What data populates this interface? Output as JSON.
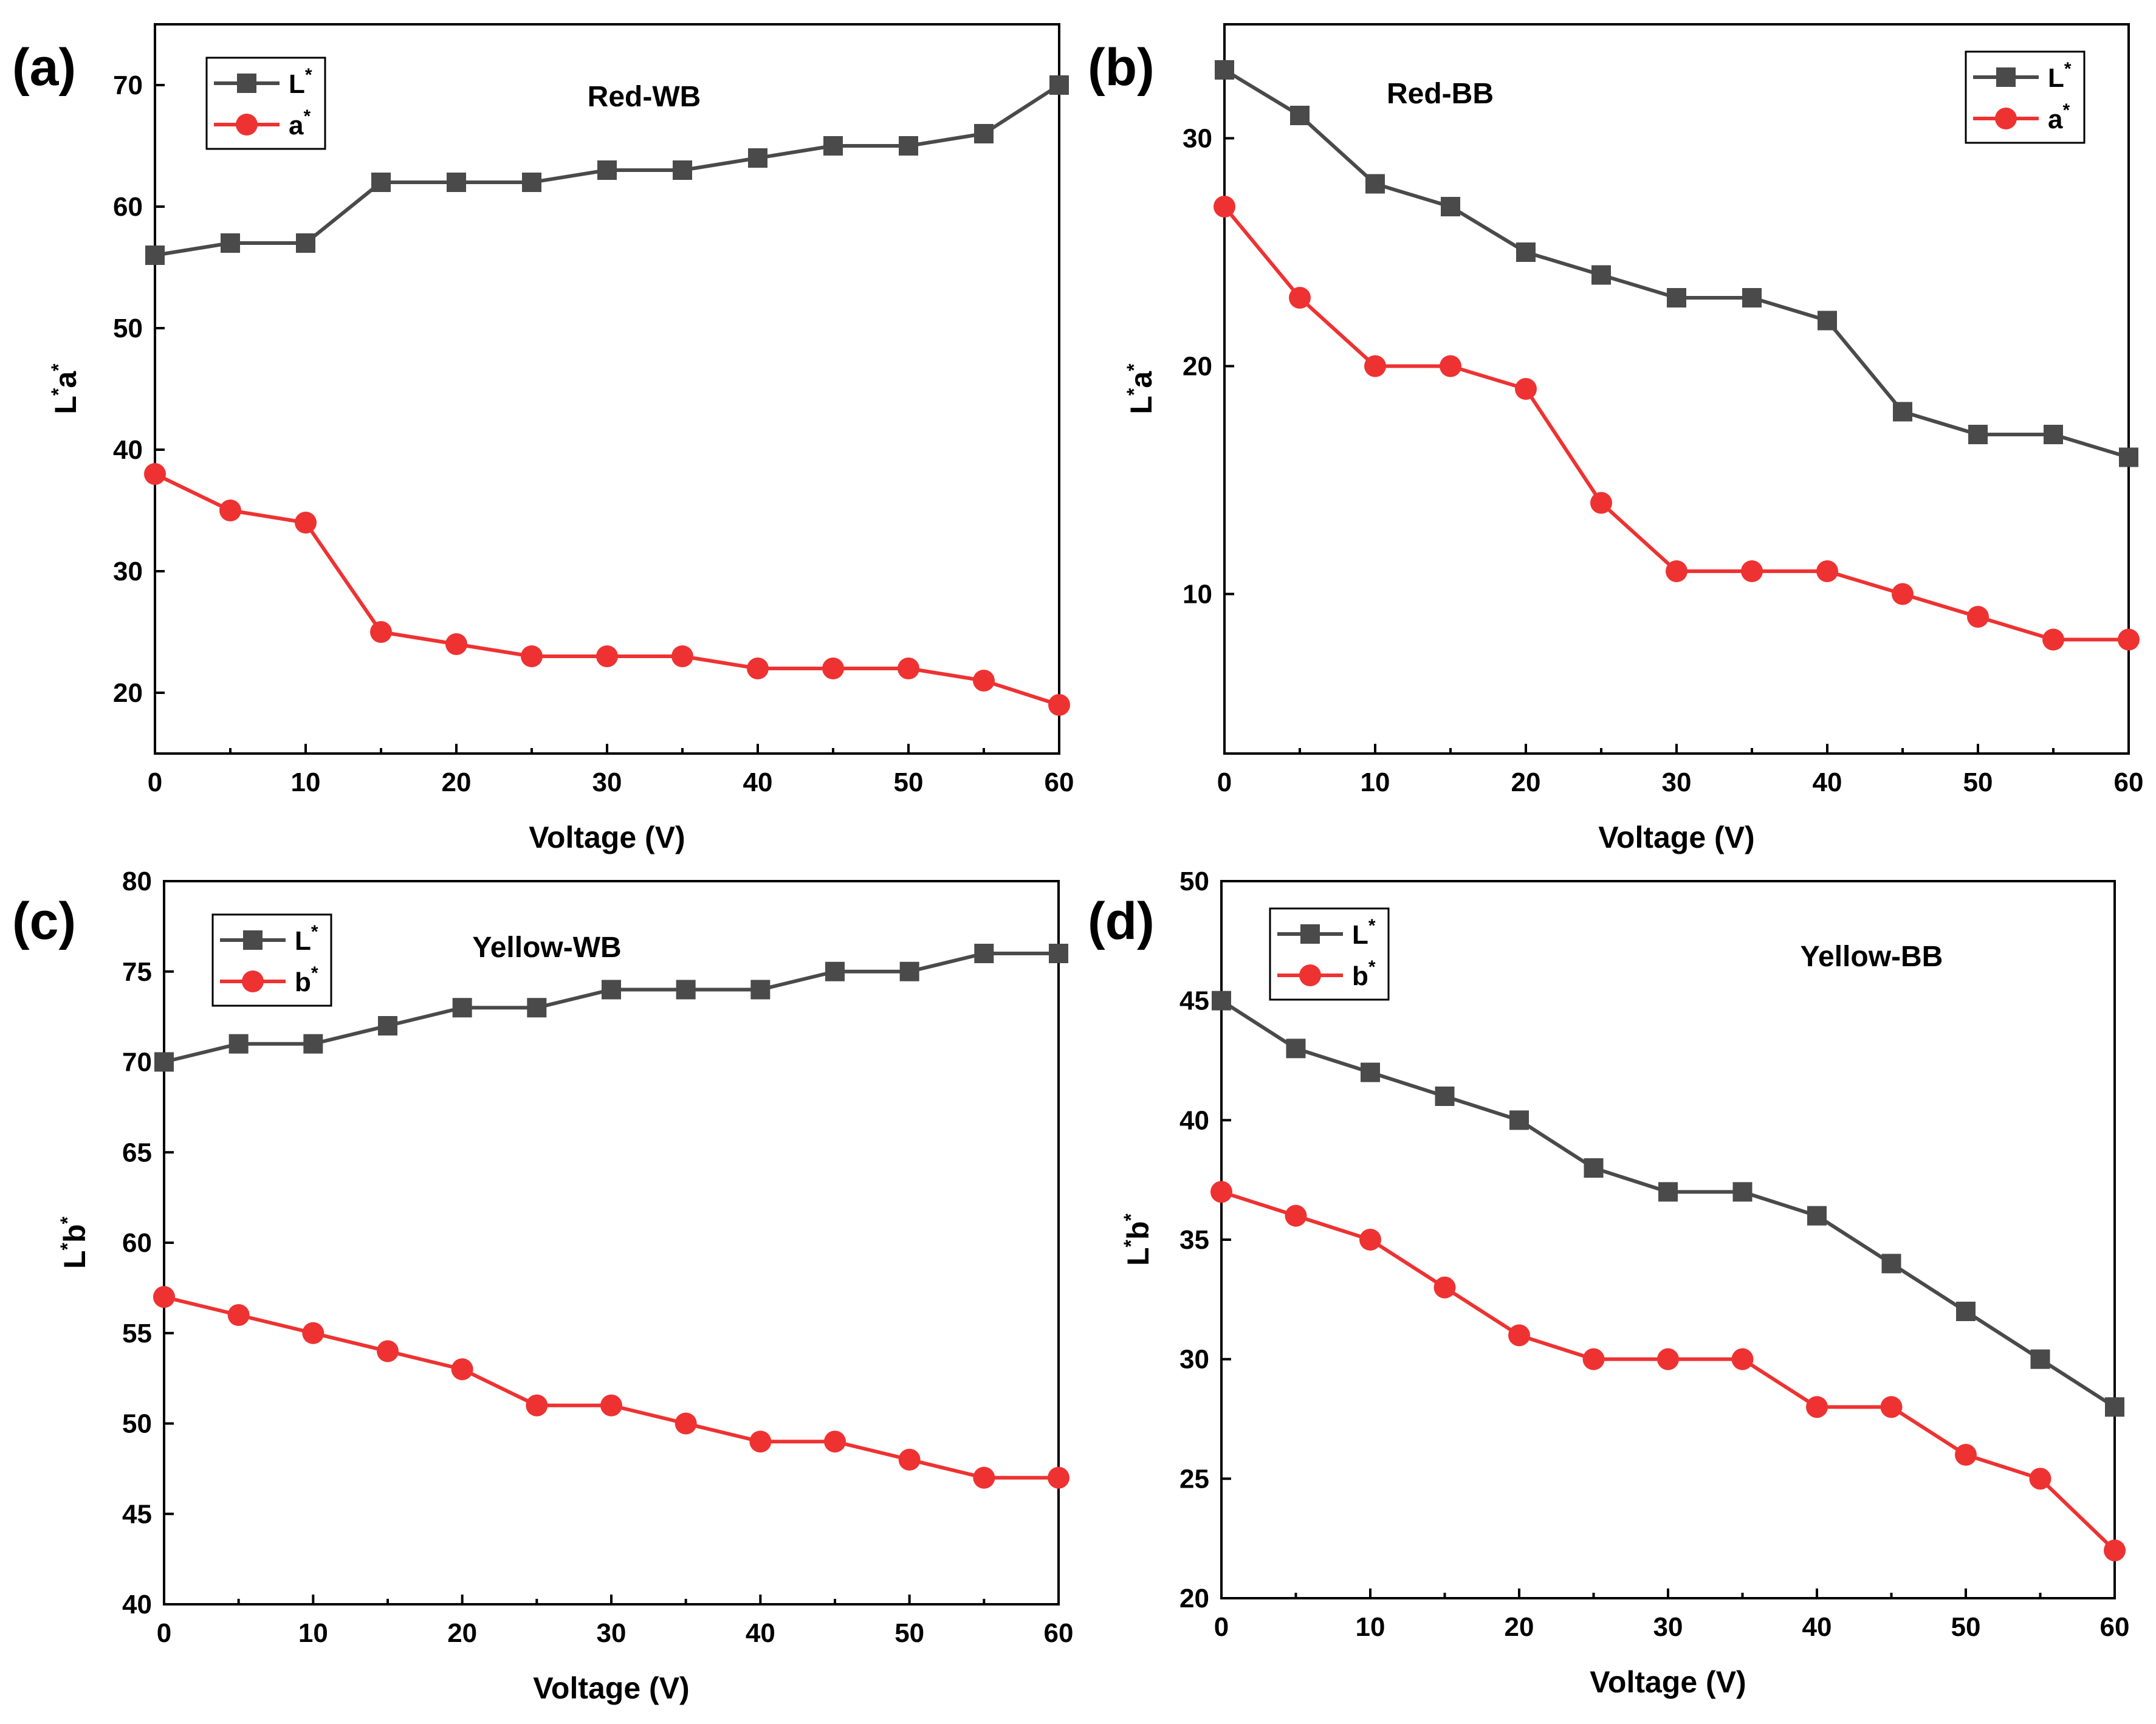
{
  "colors": {
    "L_series": "#4a4a4a",
    "color_series": "#ee3232"
  },
  "chart_data": [
    {
      "panel": "(a)",
      "type": "line",
      "title": "Red-WB",
      "xlabel": "Voltage (V)",
      "ylabel_base": [
        "L",
        "a"
      ],
      "ylabel_sup": "*",
      "xlim": [
        0,
        60
      ],
      "ylim": [
        15,
        75
      ],
      "xticks": [
        0,
        10,
        20,
        30,
        40,
        50,
        60
      ],
      "yticks": [
        20,
        30,
        40,
        50,
        60,
        70
      ],
      "x": [
        0,
        5,
        10,
        15,
        20,
        25,
        30,
        35,
        40,
        45,
        50,
        55,
        60
      ],
      "series": [
        {
          "name": "L",
          "sup": "*",
          "marker": "square",
          "values": [
            56,
            57,
            57,
            62,
            62,
            62,
            63,
            63,
            64,
            65,
            65,
            66,
            70
          ]
        },
        {
          "name": "a",
          "sup": "*",
          "marker": "circle",
          "values": [
            38,
            35,
            34,
            25,
            24,
            23,
            23,
            23,
            22,
            22,
            22,
            21,
            19
          ]
        }
      ],
      "legend": "top-left"
    },
    {
      "panel": "(b)",
      "type": "line",
      "title": "Red-BB",
      "xlabel": "Voltage (V)",
      "ylabel_base": [
        "L",
        "a"
      ],
      "ylabel_sup": "*",
      "xlim": [
        0,
        60
      ],
      "ylim": [
        3,
        35
      ],
      "xticks": [
        0,
        10,
        20,
        30,
        40,
        50,
        60
      ],
      "yticks": [
        10,
        20,
        30
      ],
      "x": [
        0,
        5,
        10,
        15,
        20,
        25,
        30,
        35,
        40,
        45,
        50,
        55,
        60
      ],
      "series": [
        {
          "name": "L",
          "sup": "*",
          "marker": "square",
          "values": [
            33,
            31,
            28,
            27,
            25,
            24,
            23,
            23,
            22,
            18,
            17,
            17,
            16
          ]
        },
        {
          "name": "a",
          "sup": "*",
          "marker": "circle",
          "values": [
            27,
            23,
            20,
            20,
            19,
            14,
            11,
            11,
            11,
            10,
            9,
            8,
            8
          ]
        }
      ],
      "legend": "top-right"
    },
    {
      "panel": "(c)",
      "type": "line",
      "title": "Yellow-WB",
      "xlabel": "Voltage (V)",
      "ylabel_base": [
        "L",
        "b"
      ],
      "ylabel_sup": "*",
      "xlim": [
        0,
        60
      ],
      "ylim": [
        40,
        80
      ],
      "xticks": [
        0,
        10,
        20,
        30,
        40,
        50,
        60
      ],
      "yticks": [
        40,
        45,
        50,
        55,
        60,
        65,
        70,
        75,
        80
      ],
      "x": [
        0,
        5,
        10,
        15,
        20,
        25,
        30,
        35,
        40,
        45,
        50,
        55,
        60
      ],
      "series": [
        {
          "name": "L",
          "sup": "*",
          "marker": "square",
          "values": [
            70,
            71,
            71,
            72,
            73,
            73,
            74,
            74,
            74,
            75,
            75,
            76,
            76
          ]
        },
        {
          "name": "b",
          "sup": "*",
          "marker": "circle",
          "values": [
            57,
            56,
            55,
            54,
            53,
            51,
            51,
            50,
            49,
            49,
            48,
            47,
            47
          ]
        }
      ],
      "legend": "top-left"
    },
    {
      "panel": "(d)",
      "type": "line",
      "title": "Yellow-BB",
      "xlabel": "Voltage (V)",
      "ylabel_base": [
        "L",
        "b"
      ],
      "ylabel_sup": "*",
      "xlim": [
        0,
        60
      ],
      "ylim": [
        20,
        50
      ],
      "xticks": [
        0,
        10,
        20,
        30,
        40,
        50,
        60
      ],
      "yticks": [
        20,
        25,
        30,
        35,
        40,
        45,
        50
      ],
      "x": [
        0,
        5,
        10,
        15,
        20,
        25,
        30,
        35,
        40,
        45,
        50,
        55,
        60
      ],
      "series": [
        {
          "name": "L",
          "sup": "*",
          "marker": "square",
          "values": [
            45,
            43,
            42,
            41,
            40,
            38,
            37,
            37,
            36,
            34,
            32,
            30,
            28
          ]
        },
        {
          "name": "b",
          "sup": "*",
          "marker": "circle",
          "values": [
            37,
            36,
            35,
            33,
            31,
            30,
            30,
            30,
            28,
            28,
            26,
            25,
            22
          ]
        }
      ],
      "legend": "top-left"
    }
  ]
}
